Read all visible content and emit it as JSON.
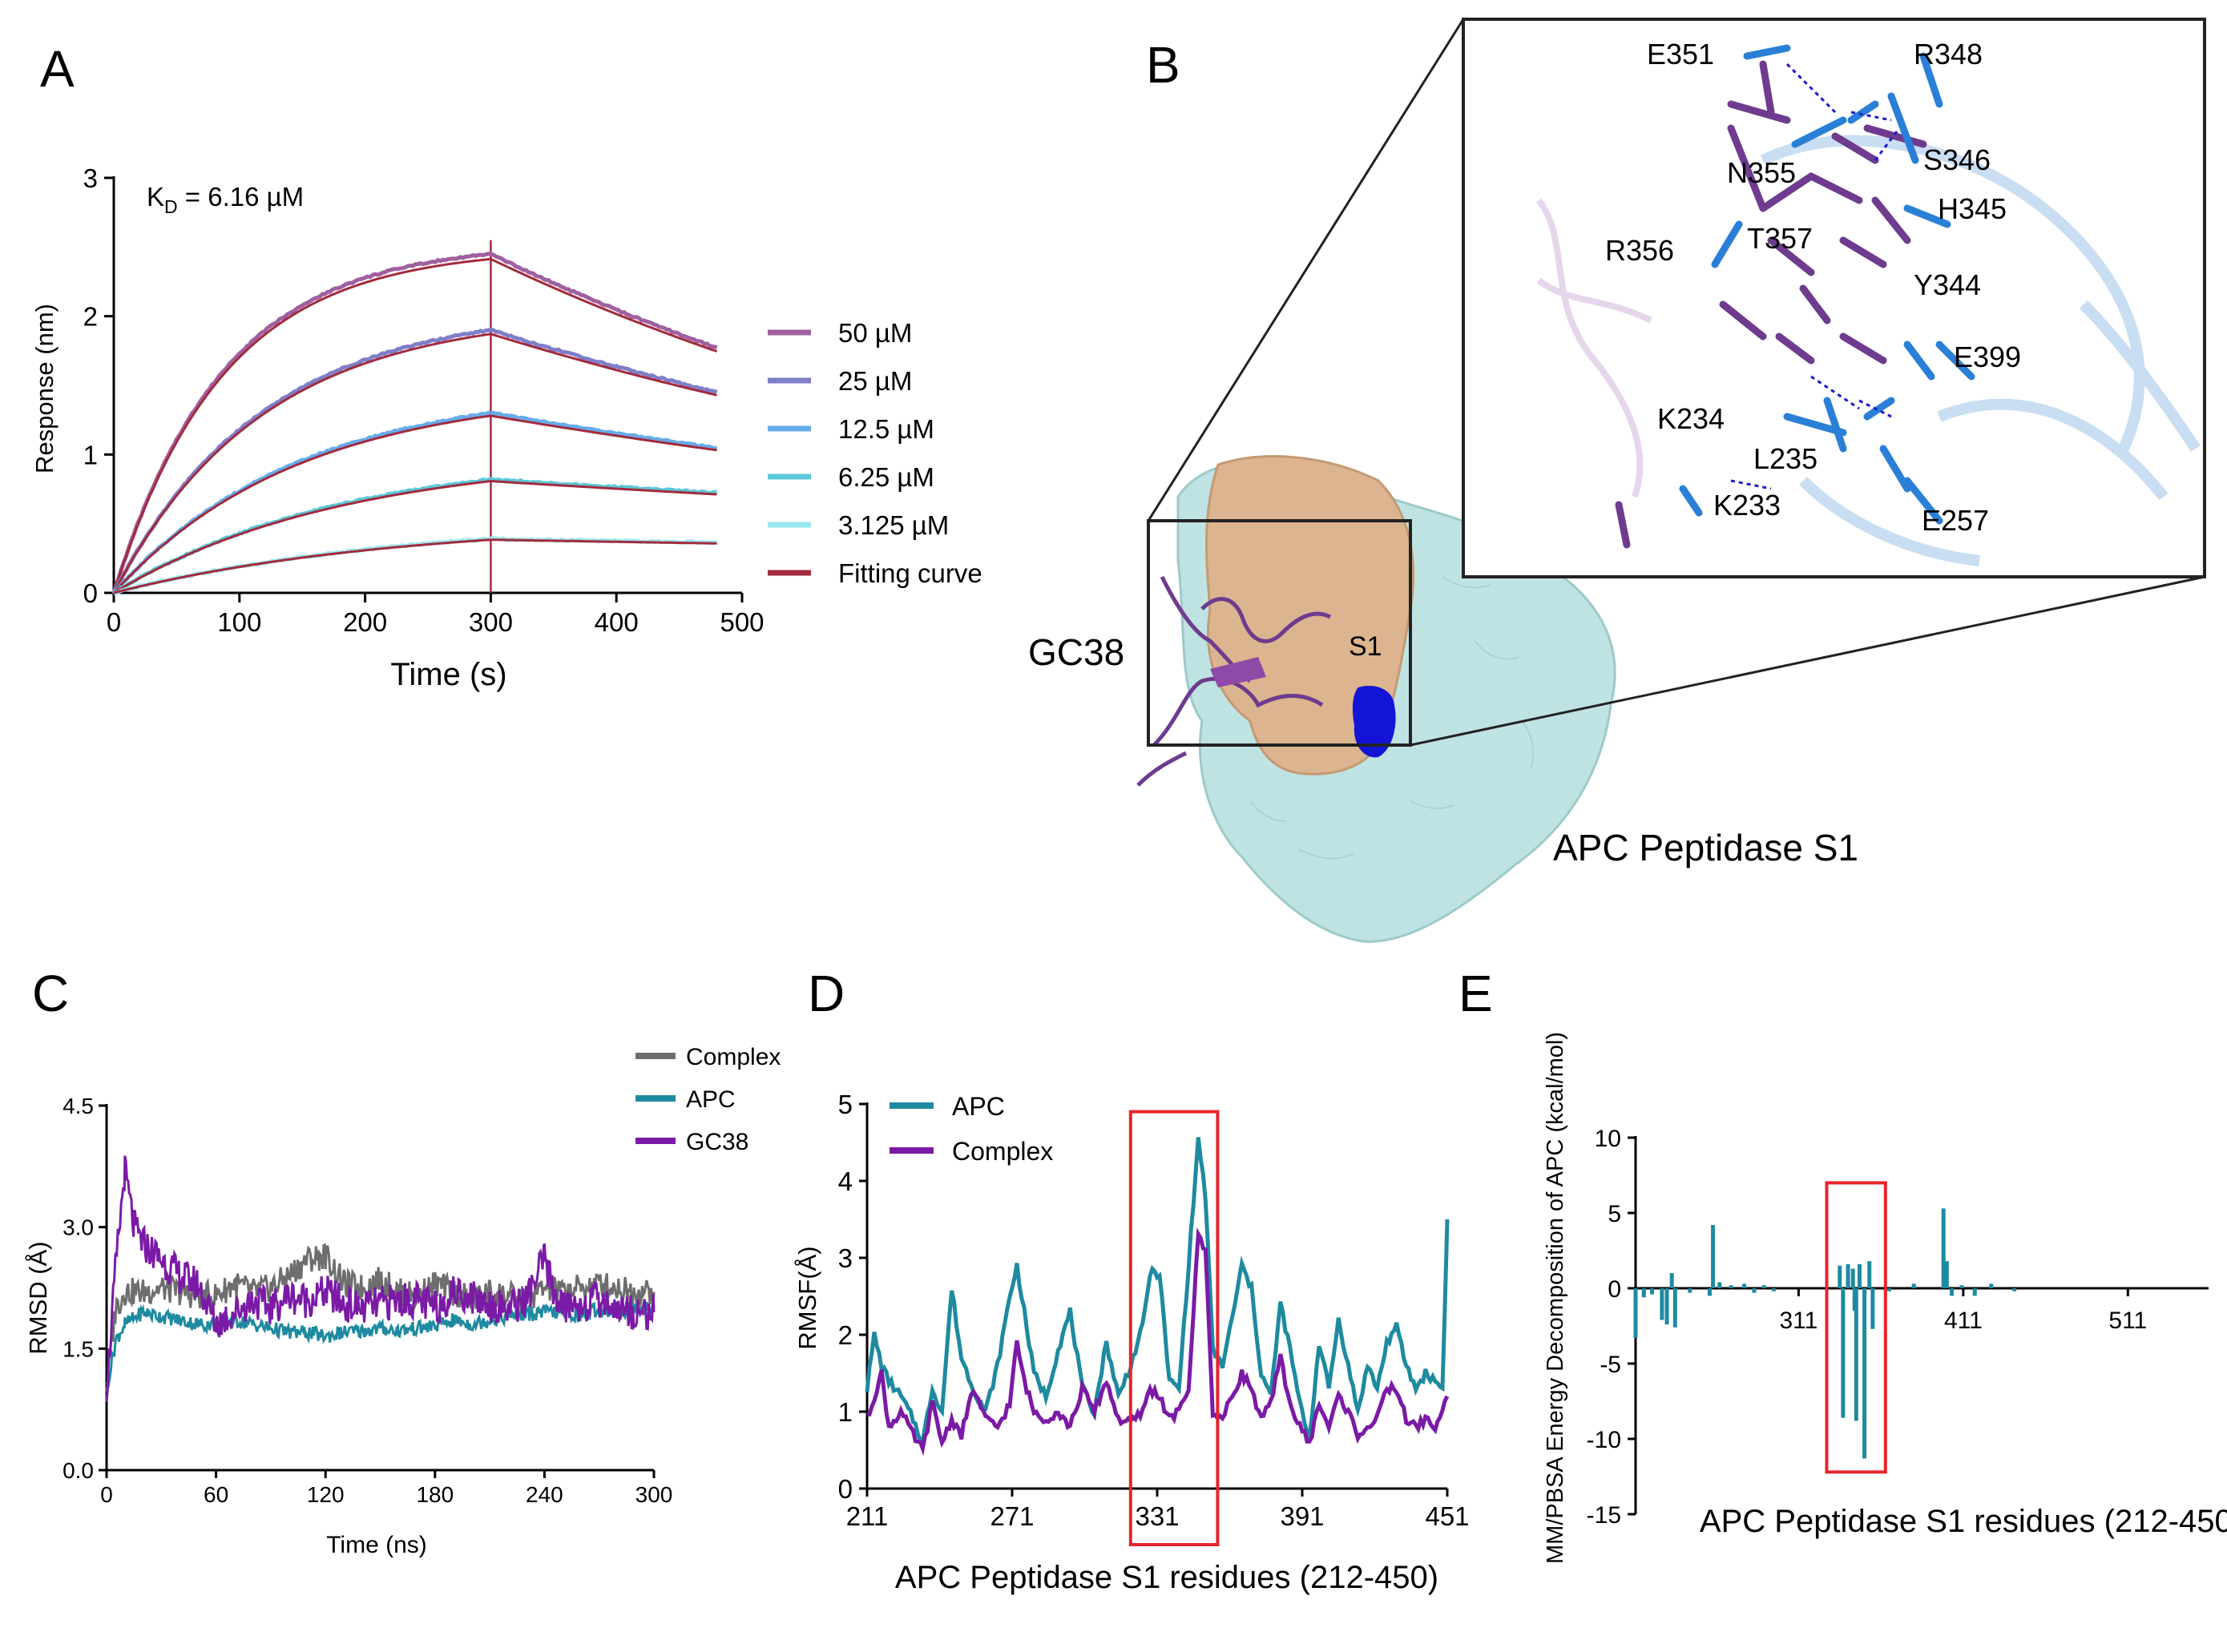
{
  "colors": {
    "c50": "#a0609f",
    "c25": "#7f7ec8",
    "c12": "#66acea",
    "c6": "#5cc8d8",
    "c3": "#9ae8f2",
    "fit": "#a22b3d",
    "complex_gray": "#6e6e6e",
    "apc_teal": "#1e8aa0",
    "gc38_purple": "#7b1aa6",
    "highlight_red": "#e8232b",
    "tan": "#dcb48f",
    "surface": "#bfe3e3",
    "s1_blue": "#1414d6",
    "stick_blue": "#2a7fd6",
    "stick_purple": "#6e3b8e"
  },
  "panel_labels": {
    "A": "A",
    "B": "B",
    "C": "C",
    "D": "D",
    "E": "E"
  },
  "panel_b": {
    "gc38_label": "GC38",
    "s1_label": "S1",
    "protein_label": "APC Peptidase S1",
    "residues": [
      "E351",
      "R348",
      "N355",
      "S346",
      "H345",
      "T357",
      "R356",
      "Y344",
      "E399",
      "K234",
      "L235",
      "K233",
      "E257"
    ]
  },
  "chart_data": [
    {
      "id": "A",
      "type": "line",
      "title": "",
      "annotation": "K_D = 6.16 µM",
      "annotation_main": "K",
      "annotation_sub": "D",
      "annotation_rest": " = 6.16 µM",
      "xlabel": "Time (s)",
      "ylabel": "Response (nm)",
      "xlim": [
        0,
        500
      ],
      "ylim": [
        0,
        3
      ],
      "xticks": [
        "0",
        "100",
        "200",
        "300",
        "400",
        "500"
      ],
      "yticks": [
        "0",
        "1",
        "2",
        "3"
      ],
      "association_end_s": 300,
      "end_s": 480,
      "series": [
        {
          "name": "50 µM",
          "color_key": "c50",
          "plateau": 2.45,
          "k_on": 0.0115,
          "k_off": 0.0018
        },
        {
          "name": "25 µM",
          "color_key": "c25",
          "plateau": 1.9,
          "k_on": 0.0085,
          "k_off": 0.0015
        },
        {
          "name": "12.5 µM",
          "color_key": "c12",
          "plateau": 1.3,
          "k_on": 0.0068,
          "k_off": 0.0012
        },
        {
          "name": "6.25 µM",
          "color_key": "c6",
          "plateau": 0.82,
          "k_on": 0.0055,
          "k_off": 0.0007
        },
        {
          "name": "3.125 µM",
          "color_key": "c3",
          "plateau": 0.39,
          "k_on": 0.0045,
          "k_off": 0.0004
        }
      ],
      "fitting_label": "Fitting curve"
    },
    {
      "id": "C",
      "type": "line",
      "xlabel": "Time (ns)",
      "ylabel": "RMSD (Å)",
      "xlim": [
        0,
        300
      ],
      "ylim": [
        0,
        4.5
      ],
      "xticks": [
        "0",
        "60",
        "120",
        "180",
        "240",
        "300"
      ],
      "yticks": [
        "0.0",
        "1.5",
        "3.0",
        "4.5"
      ],
      "series": [
        {
          "name": "Complex",
          "color_key": "complex_gray",
          "x": [
            0,
            5,
            10,
            20,
            30,
            40,
            50,
            60,
            70,
            80,
            90,
            100,
            110,
            120,
            130,
            140,
            150,
            160,
            170,
            180,
            190,
            200,
            210,
            220,
            230,
            240,
            250,
            260,
            270,
            280,
            290,
            300
          ],
          "y": [
            1.0,
            2.0,
            2.2,
            2.2,
            2.25,
            2.2,
            2.15,
            2.15,
            2.3,
            2.2,
            2.25,
            2.4,
            2.6,
            2.65,
            2.3,
            2.25,
            2.35,
            2.2,
            2.15,
            2.3,
            2.2,
            2.1,
            2.2,
            2.15,
            2.1,
            2.25,
            2.2,
            2.25,
            2.3,
            2.25,
            2.2,
            2.2
          ]
        },
        {
          "name": "APC",
          "color_key": "apc_teal",
          "x": [
            0,
            5,
            10,
            20,
            30,
            40,
            50,
            60,
            70,
            80,
            90,
            100,
            110,
            120,
            130,
            140,
            150,
            160,
            170,
            180,
            190,
            200,
            210,
            220,
            230,
            240,
            250,
            260,
            270,
            280,
            290,
            300
          ],
          "y": [
            1.0,
            1.6,
            1.8,
            1.95,
            1.9,
            1.85,
            1.8,
            1.8,
            1.85,
            1.8,
            1.75,
            1.7,
            1.7,
            1.65,
            1.7,
            1.72,
            1.75,
            1.72,
            1.75,
            1.78,
            1.85,
            1.8,
            1.85,
            1.9,
            1.92,
            1.95,
            1.95,
            1.9,
            2.0,
            1.95,
            2.0,
            2.0
          ]
        },
        {
          "name": "GC38",
          "color_key": "gc38_purple",
          "x": [
            0,
            5,
            10,
            15,
            20,
            25,
            30,
            40,
            50,
            60,
            70,
            80,
            90,
            100,
            110,
            120,
            130,
            140,
            150,
            160,
            170,
            180,
            190,
            200,
            210,
            220,
            230,
            240,
            245,
            250,
            260,
            270,
            280,
            290,
            300
          ],
          "y": [
            1.0,
            2.5,
            3.7,
            3.0,
            2.8,
            2.7,
            2.6,
            2.4,
            2.3,
            1.8,
            1.95,
            2.1,
            2.0,
            2.15,
            2.1,
            2.2,
            2.05,
            2.0,
            2.05,
            2.1,
            2.1,
            2.0,
            2.2,
            2.15,
            2.05,
            2.0,
            2.1,
            2.6,
            2.2,
            2.0,
            2.05,
            2.1,
            2.0,
            1.95,
            1.95
          ]
        }
      ]
    },
    {
      "id": "D",
      "type": "line",
      "xlabel": "APC Peptidase S1 residues (212-450)",
      "ylabel": "RMSF(Å)",
      "xlim": [
        211,
        451
      ],
      "ylim": [
        0,
        5
      ],
      "xticks": [
        "211",
        "271",
        "331",
        "391",
        "451"
      ],
      "yticks": [
        "0",
        "1",
        "2",
        "3",
        "4",
        "5"
      ],
      "highlight_x": [
        320,
        356
      ],
      "series": [
        {
          "name": "APC",
          "color_key": "apc_teal",
          "x": [
            211,
            214,
            217,
            220,
            225,
            230,
            234,
            238,
            242,
            246,
            250,
            255,
            260,
            265,
            270,
            273,
            276,
            280,
            285,
            290,
            295,
            300,
            305,
            310,
            315,
            320,
            325,
            328,
            332,
            336,
            340,
            344,
            348,
            351,
            354,
            358,
            362,
            366,
            370,
            374,
            378,
            382,
            386,
            390,
            394,
            398,
            402,
            406,
            410,
            414,
            418,
            422,
            426,
            430,
            434,
            438,
            442,
            446,
            449,
            451
          ],
          "y": [
            1.3,
            2.0,
            1.6,
            1.4,
            1.2,
            0.9,
            0.6,
            1.3,
            1.0,
            2.6,
            1.7,
            1.3,
            1.0,
            1.6,
            2.5,
            2.9,
            2.3,
            1.5,
            1.2,
            1.8,
            2.3,
            1.3,
            1.0,
            1.9,
            1.2,
            1.6,
            2.1,
            2.8,
            2.8,
            1.4,
            1.3,
            2.9,
            4.55,
            3.8,
            1.8,
            1.6,
            2.2,
            2.9,
            2.6,
            1.5,
            1.2,
            2.4,
            1.8,
            1.1,
            0.65,
            1.9,
            1.3,
            2.2,
            1.6,
            1.0,
            1.6,
            1.3,
            1.9,
            2.1,
            1.6,
            1.3,
            1.5,
            1.4,
            1.3,
            3.5
          ]
        },
        {
          "name": "Complex",
          "color_key": "gc38_purple",
          "x": [
            211,
            214,
            217,
            220,
            225,
            230,
            234,
            238,
            242,
            246,
            250,
            255,
            260,
            265,
            270,
            273,
            276,
            280,
            285,
            290,
            295,
            300,
            305,
            310,
            315,
            320,
            325,
            328,
            332,
            336,
            340,
            344,
            348,
            351,
            354,
            358,
            362,
            366,
            370,
            374,
            378,
            382,
            386,
            390,
            394,
            398,
            402,
            406,
            410,
            414,
            418,
            422,
            426,
            430,
            434,
            438,
            442,
            446,
            449,
            451
          ],
          "y": [
            0.9,
            1.2,
            1.5,
            0.8,
            1.0,
            0.7,
            0.5,
            1.1,
            0.6,
            0.9,
            0.7,
            1.3,
            0.9,
            0.8,
            1.1,
            1.9,
            1.4,
            1.0,
            0.9,
            1.0,
            0.8,
            1.3,
            1.0,
            1.4,
            0.9,
            0.85,
            1.0,
            1.3,
            1.2,
            0.9,
            1.0,
            1.3,
            3.3,
            3.1,
            1.0,
            0.9,
            1.2,
            1.5,
            1.3,
            0.9,
            1.1,
            1.7,
            1.1,
            0.8,
            0.6,
            1.1,
            0.8,
            1.2,
            1.0,
            0.7,
            0.8,
            0.9,
            1.3,
            1.3,
            0.9,
            0.8,
            0.9,
            0.8,
            1.0,
            1.2
          ]
        }
      ]
    },
    {
      "id": "E",
      "type": "bar",
      "xlabel": "APC Peptidase S1 residues (212-450)",
      "ylabel": "MM/PBSA Energy Decomposition of APC  (kcal/mol)",
      "xlim": [
        212,
        560
      ],
      "ylim": [
        -15,
        10
      ],
      "xticks": [
        "311",
        "411",
        "511"
      ],
      "yticks": [
        "-15",
        "-10",
        "-5",
        "0",
        "5",
        "10"
      ],
      "highlight_x": [
        331,
        355
      ],
      "bars": [
        {
          "x": 212,
          "v": -3.3
        },
        {
          "x": 217,
          "v": -0.6
        },
        {
          "x": 222,
          "v": -0.4
        },
        {
          "x": 228,
          "v": -2.1
        },
        {
          "x": 231,
          "v": -2.4
        },
        {
          "x": 234,
          "v": 1.0
        },
        {
          "x": 236,
          "v": -2.6
        },
        {
          "x": 245,
          "v": -0.3
        },
        {
          "x": 257,
          "v": -0.5
        },
        {
          "x": 259,
          "v": 4.2
        },
        {
          "x": 263,
          "v": 0.4
        },
        {
          "x": 270,
          "v": 0.2
        },
        {
          "x": 278,
          "v": 0.3
        },
        {
          "x": 284,
          "v": -0.3
        },
        {
          "x": 290,
          "v": 0.2
        },
        {
          "x": 296,
          "v": -0.2
        },
        {
          "x": 336,
          "v": 1.5
        },
        {
          "x": 338,
          "v": -8.6
        },
        {
          "x": 341,
          "v": 1.6
        },
        {
          "x": 344,
          "v": 1.3
        },
        {
          "x": 345,
          "v": -1.5
        },
        {
          "x": 346,
          "v": -8.8
        },
        {
          "x": 348,
          "v": 1.6
        },
        {
          "x": 351,
          "v": -11.3
        },
        {
          "x": 354,
          "v": 1.8
        },
        {
          "x": 356,
          "v": -2.7
        },
        {
          "x": 366,
          "v": -0.2
        },
        {
          "x": 381,
          "v": 0.3
        },
        {
          "x": 399,
          "v": 5.3
        },
        {
          "x": 401,
          "v": 1.8
        },
        {
          "x": 404,
          "v": -0.5
        },
        {
          "x": 410,
          "v": 0.2
        },
        {
          "x": 418,
          "v": -0.5
        },
        {
          "x": 428,
          "v": 0.3
        },
        {
          "x": 442,
          "v": -0.2
        }
      ]
    }
  ]
}
